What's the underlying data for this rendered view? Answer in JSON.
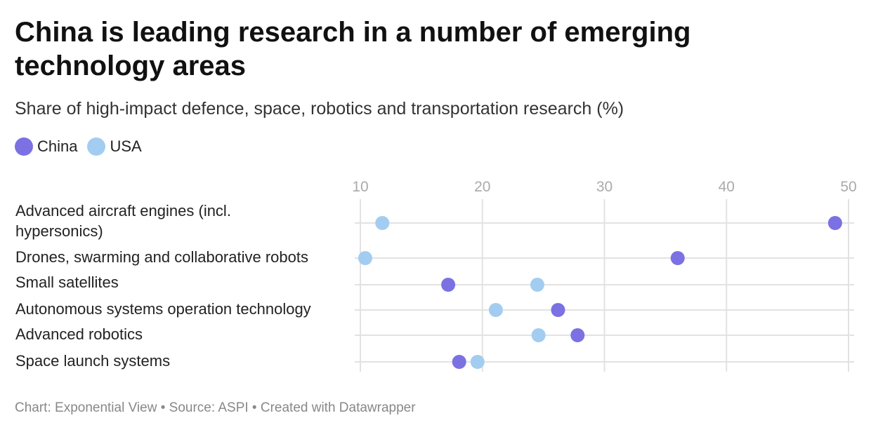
{
  "title": "China is leading research in a number of emerging technology areas",
  "subtitle": "Share of high-impact defence, space, robotics and transportation research (%)",
  "footer": "Chart: Exponential View • Source: ASPI • Created with Datawrapper",
  "colors": {
    "China": "#7b71e3",
    "USA": "#a3cdf0",
    "grid": "#e2e2e2",
    "tick": "#aaaaaa",
    "label": "#222222"
  },
  "chart_data": {
    "type": "scatter",
    "title": "China is leading research in a number of emerging technology areas",
    "subtitle": "Share of high-impact defence, space, robotics and transportation research (%)",
    "xlabel": "",
    "ylabel": "",
    "xlim": [
      10,
      50
    ],
    "xticks": [
      10,
      20,
      30,
      40,
      50
    ],
    "grid": true,
    "legend_position": "top-left",
    "categories": [
      "Advanced aircraft engines (incl. hypersonics)",
      "Drones, swarming and collaborative robots",
      "Small satellites",
      "Autonomous systems operation technology",
      "Advanced robotics",
      "Space launch systems"
    ],
    "series": [
      {
        "name": "China",
        "values": [
          48.9,
          36.0,
          17.2,
          26.2,
          27.8,
          18.1
        ]
      },
      {
        "name": "USA",
        "values": [
          11.8,
          10.4,
          24.5,
          21.1,
          24.6,
          19.6
        ]
      }
    ]
  }
}
